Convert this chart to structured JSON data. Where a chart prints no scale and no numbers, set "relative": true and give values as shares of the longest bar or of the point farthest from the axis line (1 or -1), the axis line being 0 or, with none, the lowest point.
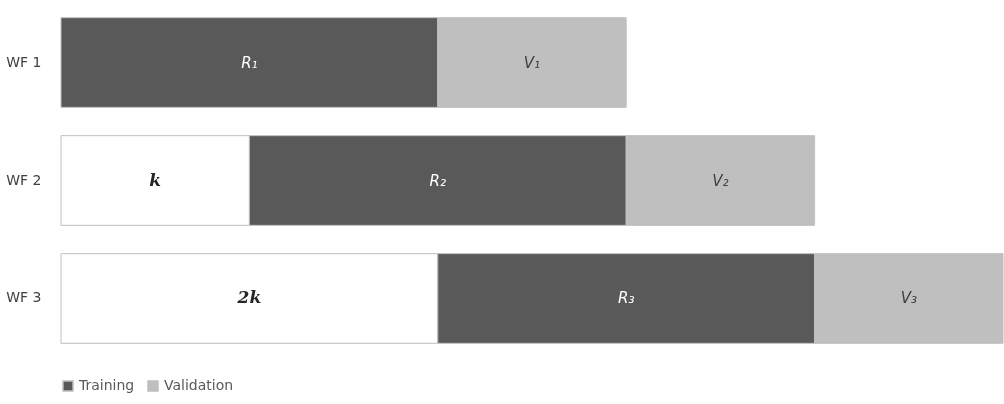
{
  "chart_data": {
    "type": "bar",
    "orientation": "horizontal",
    "stacked": true,
    "relative": true,
    "categories": [
      "WF 1",
      "WF 2",
      "WF 3"
    ],
    "series": [
      {
        "color": "#ffffff",
        "values": [
          null,
          0.2,
          0.4
        ]
      },
      {
        "name": "Training",
        "color": "#595959",
        "values": [
          0.4,
          0.4,
          0.4
        ]
      },
      {
        "name": "Validation",
        "color": "#bfbfbf",
        "values": [
          0.2,
          0.2,
          0.2
        ]
      }
    ],
    "annotations": [
      {
        "text": "R₁",
        "x": 0.2,
        "y": "WF 1"
      },
      {
        "text": "V₁",
        "x": 0.5,
        "y": "WF 1"
      },
      {
        "text": "k",
        "x": 0.1,
        "y": "WF 2"
      },
      {
        "text": "R₂",
        "x": 0.4,
        "y": "WF 2"
      },
      {
        "text": "V₂",
        "x": 0.7,
        "y": "WF 2"
      },
      {
        "text": "2k",
        "x": 0.2,
        "y": "WF 3"
      },
      {
        "text": "R₃",
        "x": 0.6,
        "y": "WF 3"
      },
      {
        "text": "V₃",
        "x": 0.9,
        "y": "WF 3"
      }
    ],
    "legend": "bottom"
  }
}
